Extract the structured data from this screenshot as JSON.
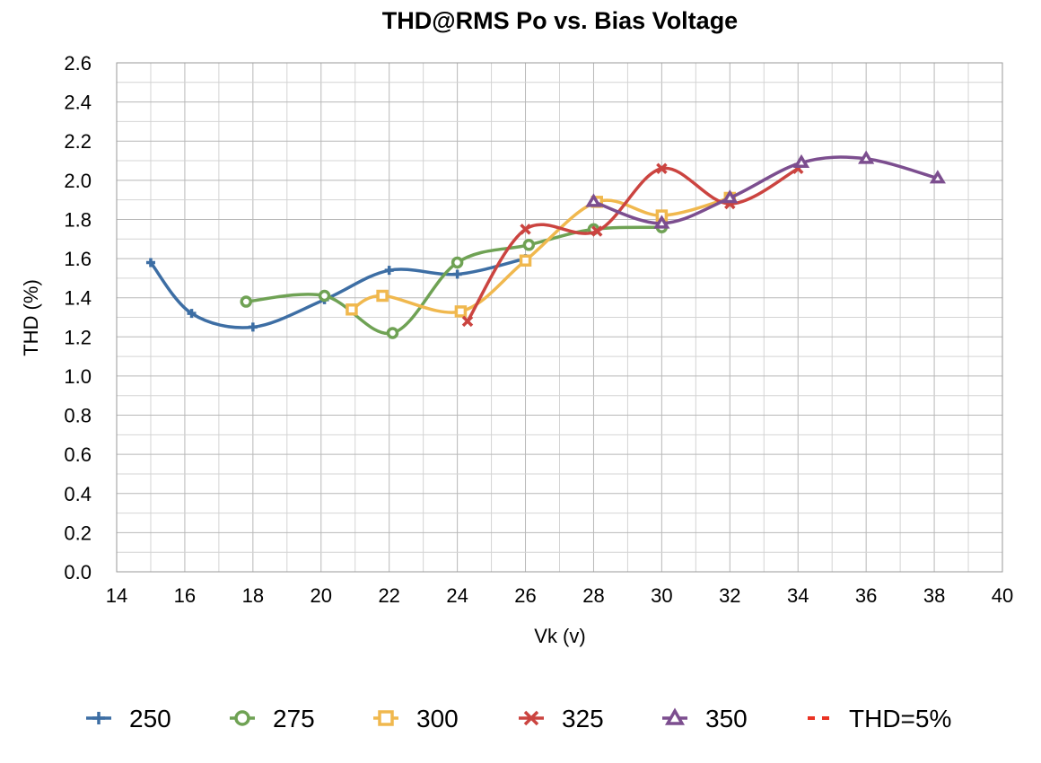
{
  "chart_data": {
    "type": "line",
    "title": "THD@RMS Po vs. Bias Voltage",
    "xlabel": "Vk (v)",
    "ylabel": "THD (%)",
    "xlim": [
      14,
      40
    ],
    "ylim": [
      0.0,
      2.6
    ],
    "x_ticks": [
      "14",
      "16",
      "18",
      "20",
      "22",
      "24",
      "26",
      "28",
      "30",
      "32",
      "34",
      "36",
      "38",
      "40"
    ],
    "y_ticks": [
      "0.0",
      "0.2",
      "0.4",
      "0.6",
      "0.8",
      "1.0",
      "1.2",
      "1.4",
      "1.6",
      "1.8",
      "2.0",
      "2.2",
      "2.4",
      "2.6"
    ],
    "grid": "major and minor",
    "legend_position": "bottom",
    "series": [
      {
        "name": "250",
        "color": "#3d6ea4",
        "marker": "plus",
        "points": [
          [
            15.0,
            1.58
          ],
          [
            16.2,
            1.32
          ],
          [
            18.0,
            1.25
          ],
          [
            20.1,
            1.39
          ],
          [
            22.0,
            1.54
          ],
          [
            24.0,
            1.52
          ],
          [
            26.0,
            1.6
          ]
        ]
      },
      {
        "name": "275",
        "color": "#6fa254",
        "marker": "circle",
        "points": [
          [
            17.8,
            1.38
          ],
          [
            20.1,
            1.41
          ],
          [
            22.1,
            1.22
          ],
          [
            24.0,
            1.58
          ],
          [
            26.1,
            1.67
          ],
          [
            28.0,
            1.75
          ],
          [
            30.0,
            1.76
          ]
        ]
      },
      {
        "name": "300",
        "color": "#f0b84e",
        "marker": "square",
        "points": [
          [
            20.9,
            1.34
          ],
          [
            21.8,
            1.41
          ],
          [
            24.1,
            1.33
          ],
          [
            26.0,
            1.59
          ],
          [
            28.1,
            1.89
          ],
          [
            30.0,
            1.82
          ],
          [
            32.0,
            1.91
          ]
        ]
      },
      {
        "name": "325",
        "color": "#cb4440",
        "marker": "cross",
        "points": [
          [
            24.3,
            1.28
          ],
          [
            26.0,
            1.75
          ],
          [
            28.1,
            1.74
          ],
          [
            30.0,
            2.06
          ],
          [
            32.0,
            1.88
          ],
          [
            34.0,
            2.06
          ]
        ]
      },
      {
        "name": "350",
        "color": "#7c4e8f",
        "marker": "triangle",
        "points": [
          [
            28.0,
            1.89
          ],
          [
            30.0,
            1.78
          ],
          [
            32.0,
            1.91
          ],
          [
            34.1,
            2.09
          ],
          [
            36.0,
            2.11
          ],
          [
            38.1,
            2.01
          ]
        ]
      },
      {
        "name": "THD=5%",
        "color": "#ea3223",
        "marker": "dash",
        "points": []
      }
    ]
  }
}
